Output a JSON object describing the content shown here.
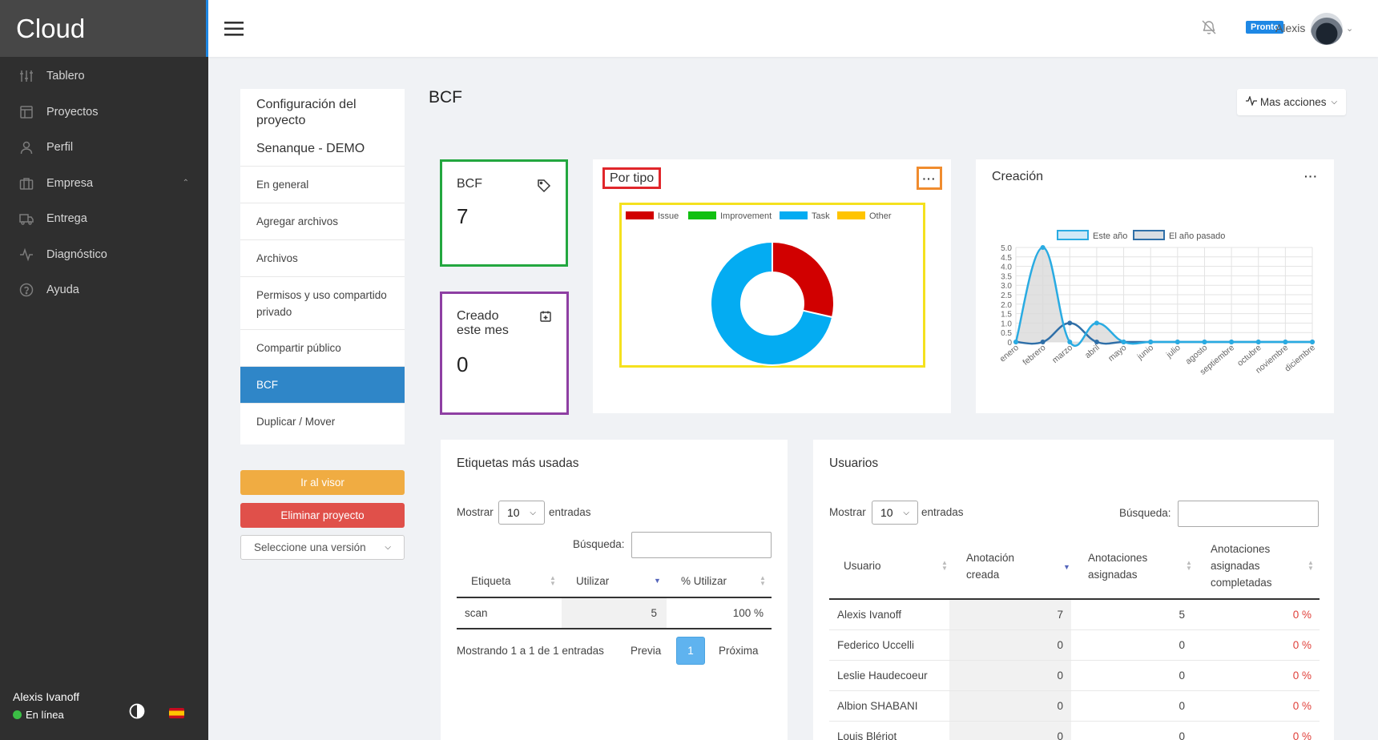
{
  "app": {
    "title": "Cloud"
  },
  "sidebar": {
    "items": [
      {
        "label": "Tablero",
        "icon": "sliders-icon"
      },
      {
        "label": "Proyectos",
        "icon": "layout-icon"
      },
      {
        "label": "Perfil",
        "icon": "user-icon"
      },
      {
        "label": "Empresa",
        "icon": "briefcase-icon",
        "expanded": true
      },
      {
        "label": "Entrega",
        "icon": "truck-icon"
      },
      {
        "label": "Diagnóstico",
        "icon": "activity-icon"
      },
      {
        "label": "Ayuda",
        "icon": "help-circle-icon"
      }
    ],
    "user_name": "Alexis Ivanoff",
    "status": "En línea",
    "status_color": "#3bbf45"
  },
  "topbar": {
    "badge": "Pronto",
    "user": "Alexis"
  },
  "left_panel": {
    "title": "Configuración del proyecto",
    "project": "Senanque - DEMO",
    "items": [
      "En general",
      "Agregar archivos",
      "Archivos",
      "Permisos y uso compartido privado",
      "Compartir público",
      "BCF",
      "Duplicar / Mover"
    ],
    "active": "BCF",
    "btn_viewer": "Ir al visor",
    "btn_delete": "Eliminar proyecto",
    "version_select": "Seleccione una versión"
  },
  "page": {
    "title": "BCF",
    "more_actions": "Mas acciones"
  },
  "stats": {
    "bcf": {
      "label": "BCF",
      "value": "7",
      "border": "#23a73f"
    },
    "month": {
      "label1": "Creado",
      "label2": "este mes",
      "value": "0",
      "border": "#8e3fa3"
    }
  },
  "by_type": {
    "title": "Por tipo",
    "menu": "···",
    "legend": [
      {
        "name": "Issue",
        "color": "#d10000"
      },
      {
        "name": "Improvement",
        "color": "#11c011"
      },
      {
        "name": "Task",
        "color": "#04acf2"
      },
      {
        "name": "Other",
        "color": "#ffc400"
      }
    ]
  },
  "creation": {
    "title": "Creación",
    "menu": "···"
  },
  "chart_data": [
    {
      "type": "pie",
      "title": "Por tipo",
      "categories": [
        "Issue",
        "Improvement",
        "Task",
        "Other"
      ],
      "values": [
        2,
        0,
        5,
        0
      ],
      "colors": [
        "#d10000",
        "#11c011",
        "#04acf2",
        "#ffc400"
      ],
      "legend": "top",
      "donut": true
    },
    {
      "type": "line",
      "title": "Creación",
      "categories": [
        "enero",
        "febrero",
        "marzo",
        "abril",
        "mayo",
        "junio",
        "julio",
        "agosto",
        "septiembre",
        "octubre",
        "noviembre",
        "diciembre"
      ],
      "series": [
        {
          "name": "Este año",
          "values": [
            0,
            5,
            0,
            1,
            0,
            0,
            0,
            0,
            0,
            0,
            0,
            0
          ],
          "color": "#29abe2",
          "fill": "#d9d9d9"
        },
        {
          "name": "El año pasado",
          "values": [
            0,
            0,
            1,
            0,
            0,
            0,
            0,
            0,
            0,
            0,
            0,
            0
          ],
          "color": "#2f6fa8"
        }
      ],
      "yticks": [
        "0",
        "0.5",
        "1.0",
        "1.5",
        "2.0",
        "2.5",
        "3.0",
        "3.5",
        "4.0",
        "4.5",
        "5.0"
      ],
      "ylim": [
        0,
        5
      ],
      "grid": true,
      "legend": "top"
    }
  ],
  "tags": {
    "title": "Etiquetas más usadas",
    "show": "Mostrar",
    "entries": "entradas",
    "page_size": "10",
    "search": "Búsqueda:",
    "columns": [
      "Etiqueta",
      "Utilizar",
      "% Utilizar"
    ],
    "rows": [
      {
        "tag": "scan",
        "use": "5",
        "pct": "100 %"
      }
    ],
    "info": "Mostrando 1 a 1 de 1 entradas",
    "prev": "Previa",
    "page": "1",
    "next": "Próxima"
  },
  "users": {
    "title": "Usuarios",
    "show": "Mostrar",
    "entries": "entradas",
    "page_size": "10",
    "search": "Búsqueda:",
    "columns": [
      "Usuario",
      "Anotación creada",
      "Anotaciones asignadas",
      "Anotaciones asignadas completadas"
    ],
    "rows": [
      {
        "user": "Alexis Ivanoff",
        "created": "7",
        "assigned": "5",
        "pct": "0 %"
      },
      {
        "user": "Federico Uccelli",
        "created": "0",
        "assigned": "0",
        "pct": "0 %"
      },
      {
        "user": "Leslie Haudecoeur",
        "created": "0",
        "assigned": "0",
        "pct": "0 %"
      },
      {
        "user": "Albion SHABANI",
        "created": "0",
        "assigned": "0",
        "pct": "0 %"
      },
      {
        "user": "Louis Blériot",
        "created": "0",
        "assigned": "0",
        "pct": "0 %"
      }
    ],
    "pct_color": "#e0403a"
  }
}
